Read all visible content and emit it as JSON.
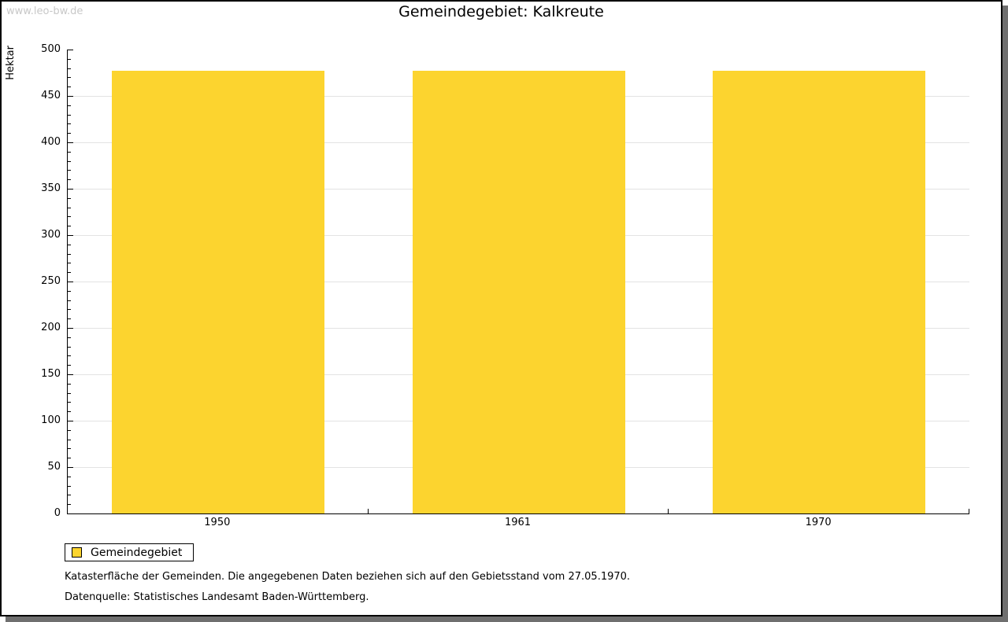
{
  "watermark": "www.leo-bw.de",
  "title": "Gemeindegebiet: Kalkreute",
  "chart_data": {
    "type": "bar",
    "title": "Gemeindegebiet: Kalkreute",
    "categories": [
      "1950",
      "1961",
      "1970"
    ],
    "series": [
      {
        "name": "Gemeindegebiet",
        "values": [
          477,
          477,
          477
        ]
      }
    ],
    "xlabel": "",
    "ylabel": "Hektar",
    "ylim": [
      0,
      500
    ],
    "ytick_step": 50,
    "yminor_step": 10,
    "grid": true,
    "bar_color": "#fcd42f",
    "gridline_color": "#e3e3e3",
    "legend_position": "bottom-left"
  },
  "legend": {
    "label": "Gemeindegebiet"
  },
  "footnotes": [
    "Katasterfläche der Gemeinden. Die angegebenen Daten beziehen sich auf den Gebietsstand vom 27.05.1970.",
    "Datenquelle: Statistisches Landesamt Baden-Württemberg."
  ]
}
